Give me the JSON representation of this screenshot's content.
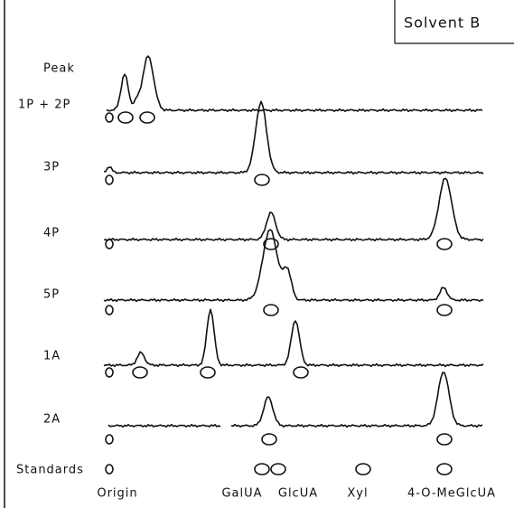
{
  "title": "Solvent B",
  "peak_header": "Peak",
  "rows": [
    {
      "label": "1P + 2P"
    },
    {
      "label": "3P"
    },
    {
      "label": "4P"
    },
    {
      "label": "5P"
    },
    {
      "label": "1A"
    },
    {
      "label": "2A"
    }
  ],
  "standards": {
    "label": "Standards",
    "names": [
      "Origin",
      "GalUA",
      "GlcUA",
      "Xyl",
      "4-O-MeGlcUA"
    ]
  }
}
